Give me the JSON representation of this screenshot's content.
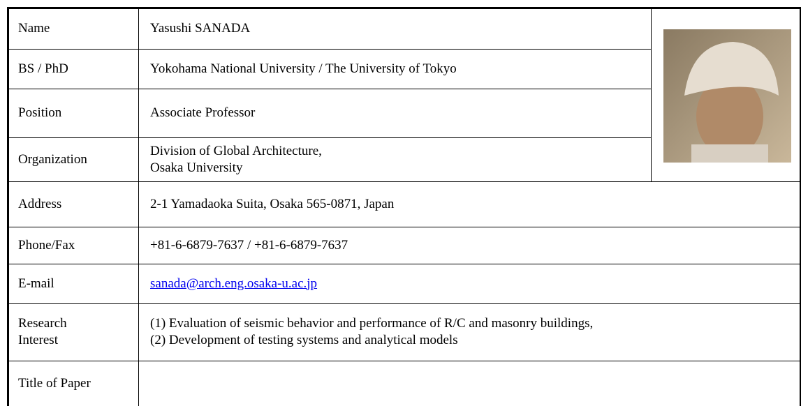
{
  "table": {
    "rows": [
      {
        "label": [
          "Name"
        ],
        "value": [
          "Yasushi SANADA"
        ]
      },
      {
        "label": [
          "BS / PhD"
        ],
        "value": [
          "Yokohama National University / The University of Tokyo"
        ]
      },
      {
        "label": [
          "Position"
        ],
        "value": [
          "Associate Professor"
        ]
      },
      {
        "label": [
          "Organization"
        ],
        "value": [
          "Division of Global Architecture,",
          "Osaka University"
        ]
      },
      {
        "label": [
          "Address"
        ],
        "value": [
          "2-1 Yamadaoka Suita, Osaka 565-0871, Japan"
        ]
      },
      {
        "label": [
          "Phone/Fax"
        ],
        "value": [
          "+81-6-6879-7637 / +81-6-6879-7637"
        ]
      },
      {
        "label": [
          "E-mail"
        ],
        "value": [
          "sanada@arch.eng.osaka-u.ac.jp"
        ],
        "link": true
      },
      {
        "label": [
          "Research",
          "Interest"
        ],
        "value": [
          "(1) Evaluation of seismic behavior and performance of R/C and masonry buildings,",
          "(2) Development of testing systems and analytical models"
        ]
      },
      {
        "label": [
          "Title of Paper"
        ],
        "value": []
      }
    ]
  }
}
